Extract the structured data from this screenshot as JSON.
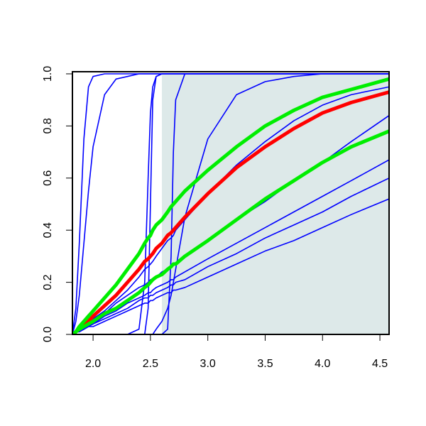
{
  "chart_data": {
    "type": "line",
    "x": [
      1.82,
      1.85,
      1.88,
      1.92,
      1.96,
      2.0,
      2.1,
      2.2,
      2.3,
      2.4,
      2.45,
      2.48,
      2.5,
      2.52,
      2.55,
      2.6,
      2.65,
      2.68,
      2.7,
      2.72,
      2.8,
      3.0,
      3.25,
      3.5,
      3.75,
      4.0,
      4.25,
      4.58
    ],
    "xlim": [
      1.82,
      4.58
    ],
    "xticks": [
      {
        "value": 2,
        "label": "2.0"
      },
      {
        "value": 2.5,
        "label": "2.5"
      },
      {
        "value": 3,
        "label": "3.0"
      },
      {
        "value": 3.5,
        "label": "3.5"
      },
      {
        "value": 4,
        "label": "4.0"
      },
      {
        "value": 4.5,
        "label": "4.5"
      }
    ],
    "ylim": [
      0,
      1
    ],
    "yticks": [
      {
        "value": 0,
        "label": "0.0"
      },
      {
        "value": 0.2,
        "label": "0.2"
      },
      {
        "value": 0.4,
        "label": "0.4"
      },
      {
        "value": 0.6,
        "label": "0.6"
      },
      {
        "value": 0.8,
        "label": "0.8"
      },
      {
        "value": 1,
        "label": "1.0"
      }
    ],
    "shaded_region": {
      "x": [
        2.6,
        4.58
      ],
      "color": "#dde9e9"
    },
    "series": [
      {
        "color": "#0000ff",
        "values": [
          0,
          0.1,
          0.35,
          0.75,
          0.95,
          0.99,
          1,
          1,
          1,
          1,
          1,
          1,
          1,
          1,
          1,
          1,
          1,
          1,
          1,
          1,
          1,
          1,
          1,
          1,
          1,
          1,
          1,
          1
        ]
      },
      {
        "color": "#0000ff",
        "values": [
          0,
          0.05,
          0.15,
          0.35,
          0.55,
          0.72,
          0.92,
          0.98,
          0.99,
          1,
          1,
          1,
          1,
          1,
          1,
          1,
          1,
          1,
          1,
          1,
          1,
          1,
          1,
          1,
          1,
          1,
          1,
          1
        ]
      },
      {
        "color": "#0000ff",
        "values": [
          0,
          0,
          0,
          0,
          0,
          0,
          0,
          0,
          0,
          0.02,
          0.2,
          0.6,
          0.85,
          0.95,
          0.99,
          1,
          1,
          1,
          1,
          1,
          1,
          1,
          1,
          1,
          1,
          1,
          1,
          1
        ]
      },
      {
        "color": "#0000ff",
        "values": [
          0,
          0,
          0,
          0,
          0,
          0,
          0,
          0,
          0,
          0,
          0,
          0.1,
          0.5,
          0.9,
          0.99,
          1,
          1,
          1,
          1,
          1,
          1,
          1,
          1,
          1,
          1,
          1,
          1,
          1
        ]
      },
      {
        "color": "#0000ff",
        "values": [
          0,
          0,
          0,
          0,
          0,
          0,
          0,
          0,
          0,
          0,
          0,
          0,
          0,
          0,
          0,
          0,
          0.02,
          0.3,
          0.7,
          0.9,
          1,
          1,
          1,
          1,
          1,
          1,
          1,
          1
        ]
      },
      {
        "color": "#0000ff",
        "values": [
          0,
          0,
          0,
          0,
          0,
          0,
          0,
          0,
          0,
          0,
          0,
          0,
          0,
          0,
          0.02,
          0.05,
          0.1,
          0.15,
          0.2,
          0.25,
          0.45,
          0.75,
          0.92,
          0.97,
          0.99,
          1,
          1,
          1
        ]
      },
      {
        "color": "#0000ff",
        "values": [
          0,
          0.01,
          0.02,
          0.03,
          0.04,
          0.06,
          0.09,
          0.13,
          0.17,
          0.22,
          0.25,
          0.26,
          0.27,
          0.28,
          0.3,
          0.33,
          0.36,
          0.37,
          0.38,
          0.4,
          0.44,
          0.54,
          0.65,
          0.74,
          0.82,
          0.88,
          0.92,
          0.95
        ]
      },
      {
        "color": "#0000ff",
        "values": [
          0,
          0.01,
          0.02,
          0.03,
          0.04,
          0.05,
          0.08,
          0.12,
          0.15,
          0.18,
          0.19,
          0.2,
          0.21,
          0.21,
          0.22,
          0.24,
          0.25,
          0.26,
          0.27,
          0.27,
          0.3,
          0.36,
          0.44,
          0.51,
          0.59,
          0.66,
          0.74,
          0.84
        ]
      },
      {
        "color": "#0000ff",
        "values": [
          0,
          0.01,
          0.01,
          0.02,
          0.03,
          0.04,
          0.07,
          0.09,
          0.12,
          0.14,
          0.15,
          0.16,
          0.16,
          0.17,
          0.18,
          0.19,
          0.2,
          0.21,
          0.21,
          0.22,
          0.24,
          0.29,
          0.35,
          0.41,
          0.47,
          0.53,
          0.59,
          0.67
        ]
      },
      {
        "color": "#0000ff",
        "values": [
          0,
          0.01,
          0.01,
          0.02,
          0.03,
          0.04,
          0.06,
          0.08,
          0.1,
          0.13,
          0.14,
          0.14,
          0.15,
          0.15,
          0.16,
          0.17,
          0.18,
          0.19,
          0.19,
          0.2,
          0.21,
          0.26,
          0.31,
          0.37,
          0.42,
          0.47,
          0.53,
          0.6
        ]
      },
      {
        "color": "#0000ff",
        "values": [
          0,
          0.01,
          0.01,
          0.02,
          0.03,
          0.03,
          0.05,
          0.07,
          0.09,
          0.11,
          0.12,
          0.12,
          0.13,
          0.13,
          0.14,
          0.15,
          0.16,
          0.16,
          0.17,
          0.17,
          0.18,
          0.22,
          0.27,
          0.32,
          0.36,
          0.41,
          0.46,
          0.52
        ]
      },
      {
        "color": "#ff0000",
        "highlight": true,
        "values": [
          0,
          0.01,
          0.02,
          0.04,
          0.05,
          0.07,
          0.11,
          0.15,
          0.2,
          0.25,
          0.28,
          0.29,
          0.3,
          0.31,
          0.33,
          0.35,
          0.38,
          0.39,
          0.4,
          0.41,
          0.45,
          0.54,
          0.64,
          0.72,
          0.79,
          0.85,
          0.89,
          0.93
        ]
      },
      {
        "color": "#00ee00",
        "highlight": true,
        "values": [
          0,
          0.01,
          0.03,
          0.05,
          0.07,
          0.09,
          0.14,
          0.19,
          0.25,
          0.31,
          0.35,
          0.37,
          0.38,
          0.4,
          0.42,
          0.44,
          0.47,
          0.49,
          0.5,
          0.51,
          0.55,
          0.63,
          0.72,
          0.8,
          0.86,
          0.91,
          0.94,
          0.98
        ]
      },
      {
        "color": "#00ee00",
        "highlight": true,
        "values": [
          0,
          0.01,
          0.02,
          0.03,
          0.04,
          0.05,
          0.08,
          0.1,
          0.13,
          0.16,
          0.18,
          0.19,
          0.2,
          0.21,
          0.22,
          0.23,
          0.25,
          0.26,
          0.27,
          0.27,
          0.3,
          0.36,
          0.44,
          0.52,
          0.59,
          0.66,
          0.72,
          0.78
        ]
      }
    ]
  }
}
